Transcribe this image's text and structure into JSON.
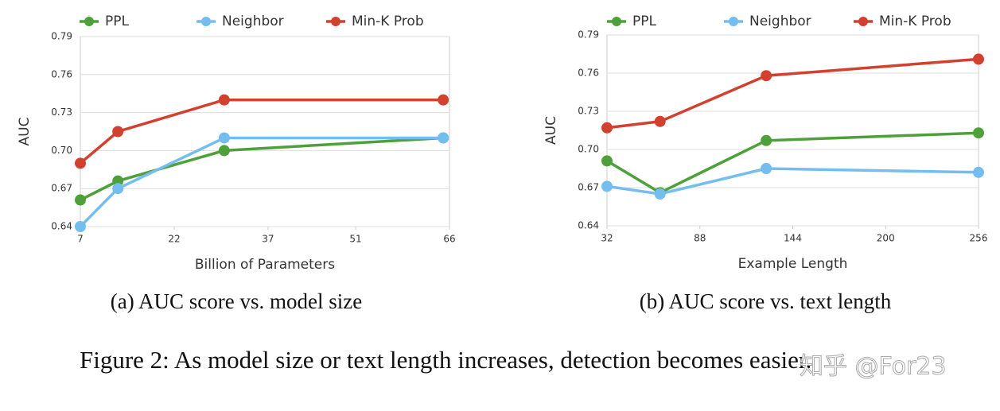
{
  "chart_data": [
    {
      "type": "line",
      "caption": "(a) AUC score vs. model size",
      "xlabel": "Billion of Parameters",
      "ylabel": "AUC",
      "x": [
        7,
        13,
        30,
        65
      ],
      "xlim": [
        7,
        66
      ],
      "xticks": [
        7,
        22,
        37,
        51,
        66
      ],
      "ylim": [
        0.64,
        0.79
      ],
      "yticks": [
        0.64,
        0.67,
        {
          "value": 0.7,
          "label": "0.70"
        },
        0.73,
        0.76,
        0.79
      ],
      "grid": true,
      "series": [
        {
          "name": "PPL",
          "color": "#4ea03a",
          "values": [
            0.661,
            0.676,
            0.7,
            0.71
          ]
        },
        {
          "name": "Neighbor",
          "color": "#74bdef",
          "values": [
            0.64,
            0.67,
            0.71,
            0.71
          ]
        },
        {
          "name": "Min-K Prob",
          "color": "#d2402f",
          "values": [
            0.69,
            0.715,
            0.74,
            0.74
          ]
        }
      ]
    },
    {
      "type": "line",
      "caption": "(b) AUC score vs. text length",
      "xlabel": "Example Length",
      "ylabel": "AUC",
      "x": [
        32,
        64,
        128,
        256
      ],
      "xlim": [
        32,
        256
      ],
      "xticks": [
        32,
        88,
        144,
        200,
        256
      ],
      "ylim": [
        0.64,
        0.79
      ],
      "yticks": [
        0.64,
        0.67,
        {
          "value": 0.7,
          "label": "0.70"
        },
        0.73,
        0.76,
        0.79
      ],
      "grid": true,
      "series": [
        {
          "name": "PPL",
          "color": "#4ea03a",
          "values": [
            0.691,
            0.666,
            0.707,
            0.713
          ]
        },
        {
          "name": "Neighbor",
          "color": "#74bdef",
          "values": [
            0.671,
            0.665,
            0.685,
            0.682
          ]
        },
        {
          "name": "Min-K Prob",
          "color": "#d2402f",
          "values": [
            0.717,
            0.722,
            0.758,
            0.771
          ]
        }
      ]
    }
  ],
  "figure_caption": "Figure 2: As model size or text length increases, detection becomes easier.",
  "watermark": "知乎 @For23"
}
